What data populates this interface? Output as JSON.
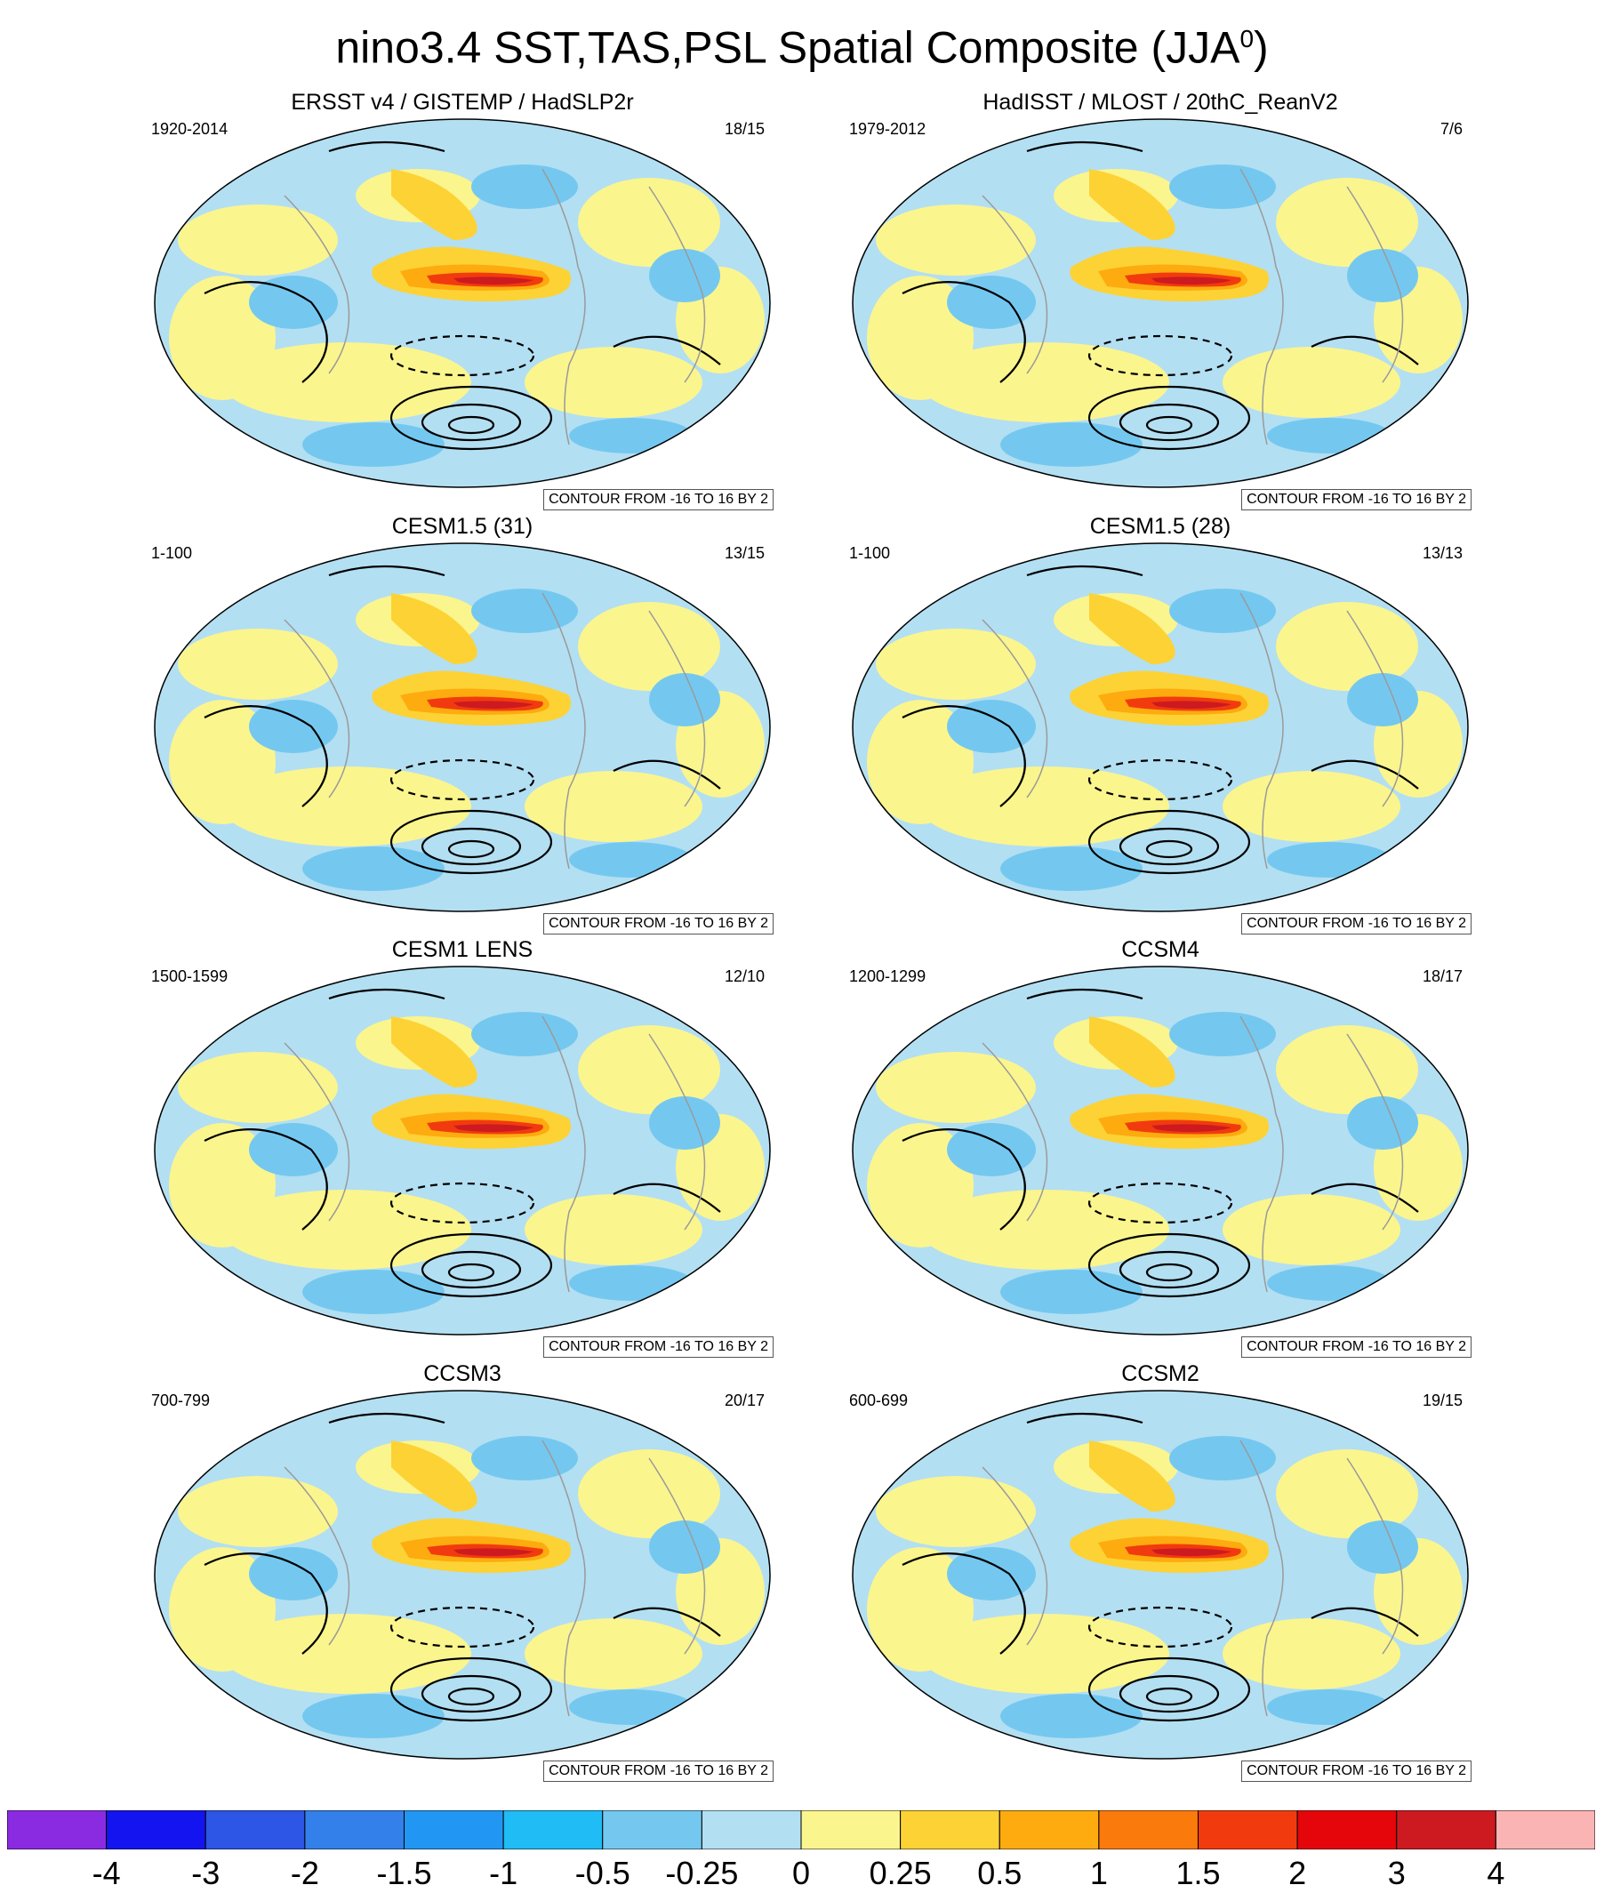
{
  "title": {
    "main": "nino3.4 SST,TAS,PSL Spatial Composite (JJA",
    "superscript": "0",
    "close": ")"
  },
  "panels": [
    {
      "title": "ERSST v4 / GISTEMP / HadSLP2r",
      "years": "1920-2014",
      "count": "18/15",
      "contour_label": "CONTOUR FROM -16 TO 16 BY 2"
    },
    {
      "title": "HadISST / MLOST / 20thC_ReanV2",
      "years": "1979-2012",
      "count": "7/6",
      "contour_label": "CONTOUR FROM -16 TO 16 BY 2"
    },
    {
      "title": "CESM1.5 (31)",
      "years": "1-100",
      "count": "13/15",
      "contour_label": "CONTOUR FROM -16 TO 16 BY 2"
    },
    {
      "title": "CESM1.5 (28)",
      "years": "1-100",
      "count": "13/13",
      "contour_label": "CONTOUR FROM -16 TO 16 BY 2"
    },
    {
      "title": "CESM1 LENS",
      "years": "1500-1599",
      "count": "12/10",
      "contour_label": "CONTOUR FROM -16 TO 16 BY 2"
    },
    {
      "title": "CCSM4",
      "years": "1200-1299",
      "count": "18/17",
      "contour_label": "CONTOUR FROM -16 TO 16 BY 2"
    },
    {
      "title": "CCSM3",
      "years": "700-799",
      "count": "20/17",
      "contour_label": "CONTOUR FROM -16 TO 16 BY 2"
    },
    {
      "title": "CCSM2",
      "years": "600-699",
      "count": "19/15",
      "contour_label": "CONTOUR FROM -16 TO 16 BY 2"
    }
  ],
  "colorbar": {
    "labels": [
      "-4",
      "-3",
      "-2",
      "-1.5",
      "-1",
      "-0.5",
      "-0.25",
      "0",
      "0.25",
      "0.5",
      "1",
      "1.5",
      "2",
      "3",
      "4"
    ],
    "colors": [
      "#8a2be2",
      "#1414f0",
      "#2d55e6",
      "#3380ea",
      "#2196f3",
      "#1fbcf5",
      "#74c8f0",
      "#b3dff2",
      "#fbf58e",
      "#fdd234",
      "#fdab0f",
      "#fb7a0c",
      "#f13b0e",
      "#e4060a",
      "#cc1a20",
      "#fbb4b4"
    ]
  },
  "colors": {
    "ocean_background": "#b3dff2",
    "warm_tongue": "#f13b0e",
    "warm_core": "#cc1a20",
    "cool_anomaly": "#74c8f0",
    "yellow_anomaly": "#fbf58e",
    "coastline": "#9a9a9a",
    "contour_line": "#000000"
  }
}
